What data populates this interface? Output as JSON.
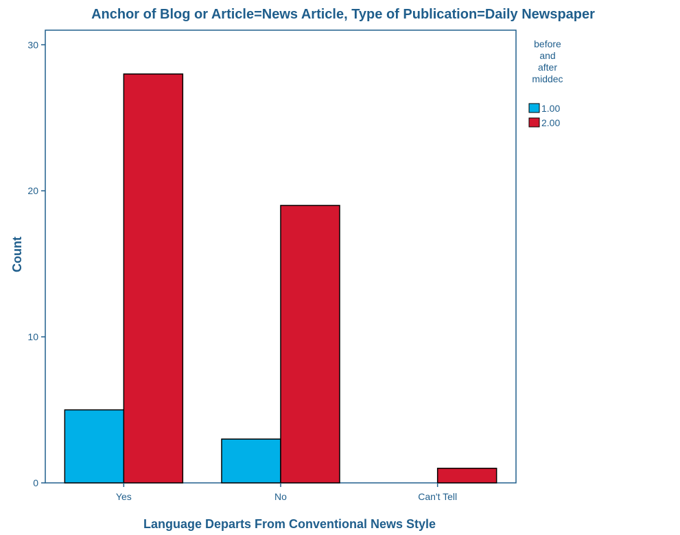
{
  "chart_data": {
    "type": "bar",
    "title": "Anchor of Blog or Article=News Article, Type of Publication=Daily Newspaper",
    "xlabel": "Language Departs From Conventional News Style",
    "ylabel": "Count",
    "categories": [
      "Yes",
      "No",
      "Can't Tell"
    ],
    "series": [
      {
        "name": "1.00",
        "values": [
          5,
          3,
          0
        ],
        "color": "#00b0e8"
      },
      {
        "name": "2.00",
        "values": [
          28,
          19,
          1
        ],
        "color": "#d4172f"
      }
    ],
    "ylim": [
      0,
      31
    ],
    "yticks": [
      "0",
      "10",
      "20",
      "30"
    ],
    "legend": {
      "title_lines": [
        "before",
        "and",
        "after",
        "middec"
      ],
      "position": "right"
    },
    "grid": false,
    "colors": {
      "text": "#1f5e8c",
      "axis": "#1f5e8c",
      "bar_border": "#000000"
    }
  }
}
